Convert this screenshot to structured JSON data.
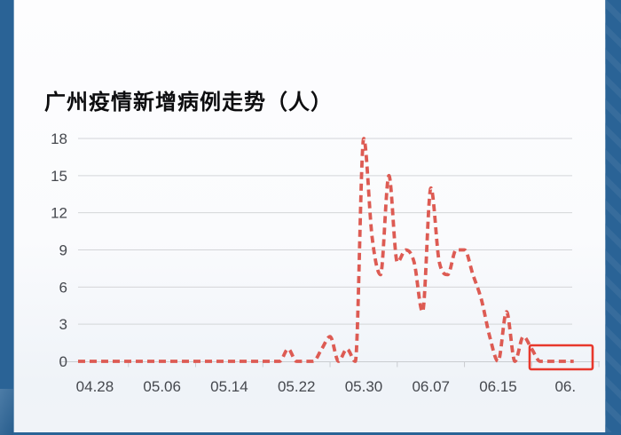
{
  "frame": {
    "edge_bar_color": "#2a6396",
    "background_top": "#fdfdfe",
    "background_bottom": "#f0f3f8"
  },
  "chart_data": {
    "type": "line",
    "title": "广州疫情新增病例走势（人）",
    "x": [
      "04.26",
      "04.27",
      "04.28",
      "04.29",
      "04.30",
      "05.01",
      "05.02",
      "05.03",
      "05.04",
      "05.05",
      "05.06",
      "05.07",
      "05.08",
      "05.09",
      "05.10",
      "05.11",
      "05.12",
      "05.13",
      "05.14",
      "05.15",
      "05.16",
      "05.17",
      "05.18",
      "05.19",
      "05.20",
      "05.21",
      "05.22",
      "05.23",
      "05.24",
      "05.25",
      "05.26",
      "05.27",
      "05.28",
      "05.29",
      "05.30",
      "05.31",
      "06.01",
      "06.02",
      "06.03",
      "06.04",
      "06.05",
      "06.06",
      "06.07",
      "06.08",
      "06.09",
      "06.10",
      "06.11",
      "06.12",
      "06.13",
      "06.14",
      "06.15",
      "06.16",
      "06.17",
      "06.18",
      "06.19",
      "06.20",
      "06.21",
      "06.22",
      "06.23",
      "06.24"
    ],
    "values": [
      0,
      0,
      0,
      0,
      0,
      0,
      0,
      0,
      0,
      0,
      0,
      0,
      0,
      0,
      0,
      0,
      0,
      0,
      0,
      0,
      0,
      0,
      0,
      0,
      0,
      1,
      0,
      0,
      0,
      1,
      2,
      0,
      1,
      0,
      18,
      10,
      7,
      15,
      8,
      9,
      8,
      4,
      14,
      8,
      7,
      9,
      9,
      7,
      5,
      2,
      0,
      4,
      0,
      2,
      1,
      0,
      0,
      0,
      0,
      0
    ],
    "x_tick_labels": [
      "04.28",
      "05.06",
      "05.14",
      "05.22",
      "05.30",
      "06.07",
      "06.15",
      "06."
    ],
    "y_ticks": [
      0,
      3,
      6,
      9,
      12,
      15,
      18
    ],
    "ylim": [
      0,
      18
    ],
    "grid": true,
    "legend": "none",
    "line_color": "#dd5b53",
    "line_style": "dashed",
    "grid_color": "#d3d5d8",
    "axis_color": "#c9ccd0",
    "label_color": "#45484e",
    "highlight_box": {
      "color": "#e8382c",
      "covers": "trailing zero-value dashes at series end"
    }
  }
}
